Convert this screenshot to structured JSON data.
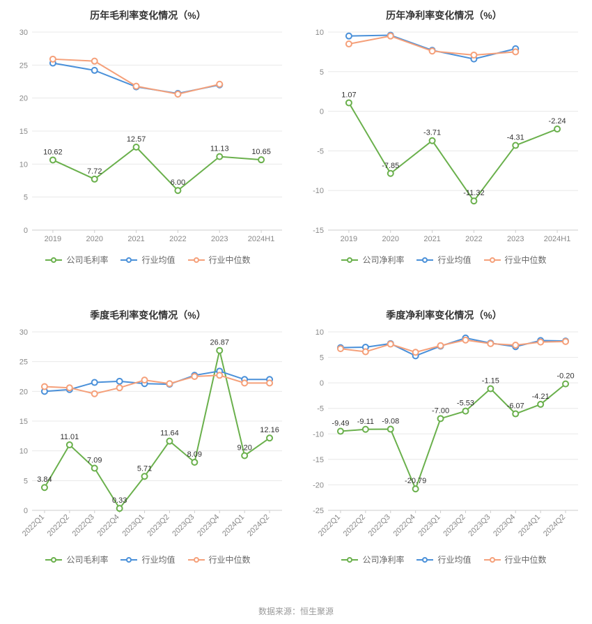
{
  "footer": "数据来源：恒生聚源",
  "colors": {
    "company": "#6ab04c",
    "industry_mean": "#4a90d9",
    "industry_median": "#f5a07a",
    "grid": "#e8e8e8",
    "axis": "#cccccc",
    "text": "#888888",
    "bg": "#ffffff",
    "label": "#333333"
  },
  "font": {
    "title_size": 14,
    "axis_size": 11,
    "point_label_size": 11,
    "legend_size": 12
  },
  "marker": {
    "radius": 4,
    "line_width": 2,
    "hollow_fill": "#ffffff"
  },
  "panels": [
    {
      "id": "annual_gross",
      "title": "历年毛利率变化情况（%）",
      "categories": [
        "2019",
        "2020",
        "2021",
        "2022",
        "2023",
        "2024H1"
      ],
      "x_rotate": 0,
      "ylim": [
        0,
        30
      ],
      "ytick_step": 5,
      "series": [
        {
          "name": "公司毛利率",
          "color_key": "company",
          "values": [
            10.62,
            7.72,
            12.57,
            6.0,
            11.13,
            10.65
          ],
          "show_labels": true,
          "labels": [
            "10.62",
            "7.72",
            "12.57",
            "6.00",
            "11.13",
            "10.65"
          ]
        },
        {
          "name": "行业均值",
          "color_key": "industry_mean",
          "values": [
            25.3,
            24.2,
            21.7,
            20.7,
            22.0,
            null
          ],
          "show_labels": false
        },
        {
          "name": "行业中位数",
          "color_key": "industry_median",
          "values": [
            25.9,
            25.6,
            21.8,
            20.6,
            22.1,
            null
          ],
          "show_labels": false
        }
      ],
      "legend": [
        "公司毛利率",
        "行业均值",
        "行业中位数"
      ]
    },
    {
      "id": "annual_net",
      "title": "历年净利率变化情况（%）",
      "categories": [
        "2019",
        "2020",
        "2021",
        "2022",
        "2023",
        "2024H1"
      ],
      "x_rotate": 0,
      "ylim": [
        -15,
        10
      ],
      "ytick_step": 5,
      "series": [
        {
          "name": "公司净利率",
          "color_key": "company",
          "values": [
            1.07,
            -7.85,
            -3.71,
            -11.32,
            -4.31,
            -2.24
          ],
          "show_labels": true,
          "labels": [
            "1.07",
            "-7.85",
            "-3.71",
            "-11.32",
            "-4.31",
            "-2.24"
          ]
        },
        {
          "name": "行业均值",
          "color_key": "industry_mean",
          "values": [
            9.5,
            9.6,
            7.7,
            6.6,
            7.9,
            null
          ],
          "show_labels": false
        },
        {
          "name": "行业中位数",
          "color_key": "industry_median",
          "values": [
            8.5,
            9.5,
            7.6,
            7.1,
            7.5,
            null
          ],
          "show_labels": false
        }
      ],
      "legend": [
        "公司净利率",
        "行业均值",
        "行业中位数"
      ]
    },
    {
      "id": "quarter_gross",
      "title": "季度毛利率变化情况（%）",
      "categories": [
        "2022Q1",
        "2022Q2",
        "2022Q3",
        "2022Q4",
        "2023Q1",
        "2023Q2",
        "2023Q3",
        "2023Q4",
        "2024Q1",
        "2024Q2"
      ],
      "x_rotate": -45,
      "ylim": [
        0,
        30
      ],
      "ytick_step": 5,
      "series": [
        {
          "name": "公司毛利率",
          "color_key": "company",
          "values": [
            3.84,
            11.01,
            7.09,
            0.33,
            5.71,
            11.64,
            8.09,
            26.87,
            9.2,
            12.16
          ],
          "show_labels": true,
          "labels": [
            "3.84",
            "11.01",
            "7.09",
            "0.33",
            "5.71",
            "11.64",
            "8.09",
            "26.87",
            "9.20",
            "12.16"
          ]
        },
        {
          "name": "行业均值",
          "color_key": "industry_mean",
          "values": [
            20.0,
            20.3,
            21.5,
            21.7,
            21.3,
            21.2,
            22.7,
            23.4,
            22.0,
            22.0
          ],
          "show_labels": false
        },
        {
          "name": "行业中位数",
          "color_key": "industry_median",
          "values": [
            20.8,
            20.6,
            19.6,
            20.6,
            21.9,
            21.3,
            22.5,
            22.7,
            21.4,
            21.4
          ],
          "show_labels": false
        }
      ],
      "legend": [
        "公司毛利率",
        "行业均值",
        "行业中位数"
      ]
    },
    {
      "id": "quarter_net",
      "title": "季度净利率变化情况（%）",
      "categories": [
        "2022Q1",
        "2022Q2",
        "2022Q3",
        "2022Q4",
        "2023Q1",
        "2023Q2",
        "2023Q3",
        "2023Q4",
        "2024Q1",
        "2024Q2"
      ],
      "x_rotate": -45,
      "ylim": [
        -25,
        10
      ],
      "ytick_step": 5,
      "series": [
        {
          "name": "公司净利率",
          "color_key": "company",
          "values": [
            -9.49,
            -9.11,
            -9.08,
            -20.79,
            -7.0,
            -5.53,
            -1.15,
            -6.07,
            -4.21,
            -0.2
          ],
          "show_labels": true,
          "labels": [
            "-9.49",
            "-9.11",
            "-9.08",
            "-20.79",
            "-7.00",
            "-5.53",
            "-1.15",
            "-6.07",
            "-4.21",
            "-0.20"
          ]
        },
        {
          "name": "行业均值",
          "color_key": "industry_mean",
          "values": [
            6.9,
            7.0,
            7.7,
            5.3,
            7.2,
            8.8,
            7.8,
            7.1,
            8.3,
            8.2
          ],
          "show_labels": false
        },
        {
          "name": "行业中位数",
          "color_key": "industry_median",
          "values": [
            6.7,
            6.1,
            7.6,
            6.0,
            7.3,
            8.4,
            7.7,
            7.4,
            8.0,
            8.1
          ],
          "show_labels": false
        }
      ],
      "legend": [
        "公司净利率",
        "行业均值",
        "行业中位数"
      ]
    }
  ]
}
